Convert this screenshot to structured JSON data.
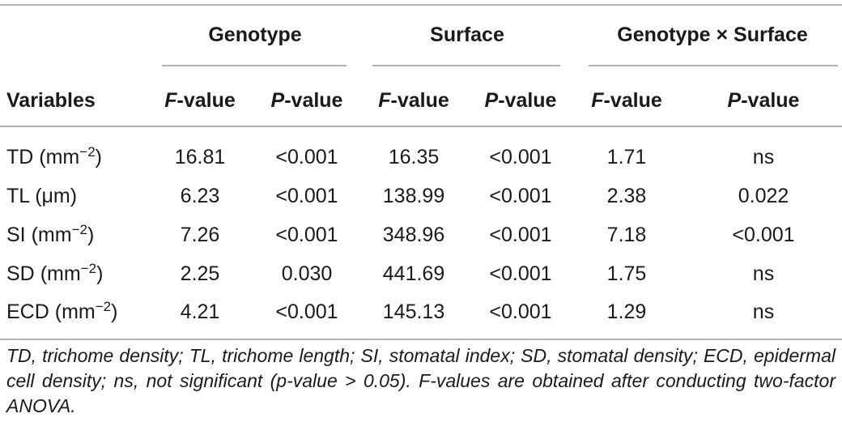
{
  "table": {
    "group_headers": [
      "Genotype",
      "Surface",
      "Genotype × Surface"
    ],
    "row_header": "Variables",
    "columns": [
      {
        "letter": "F",
        "suffix": "-value"
      },
      {
        "letter": "P",
        "suffix": "-value"
      },
      {
        "letter": "F",
        "suffix": "-value"
      },
      {
        "letter": "P",
        "suffix": "-value"
      },
      {
        "letter": "F",
        "suffix": "-value"
      },
      {
        "letter": "P",
        "suffix": "-value"
      }
    ],
    "rows": [
      {
        "name": "TD",
        "unit_base": "(mm",
        "unit_sup": "−2",
        "unit_end": ")",
        "values": [
          "16.81",
          "<0.001",
          "16.35",
          "<0.001",
          "1.71",
          "ns"
        ]
      },
      {
        "name": "TL",
        "unit_base": "(μm)",
        "unit_sup": "",
        "unit_end": "",
        "values": [
          "6.23",
          "<0.001",
          "138.99",
          "<0.001",
          "2.38",
          "0.022"
        ]
      },
      {
        "name": "SI",
        "unit_base": "(mm",
        "unit_sup": "−2",
        "unit_end": ")",
        "values": [
          "7.26",
          "<0.001",
          "348.96",
          "<0.001",
          "7.18",
          "<0.001"
        ]
      },
      {
        "name": "SD",
        "unit_base": "(mm",
        "unit_sup": "−2",
        "unit_end": ")",
        "values": [
          "2.25",
          "0.030",
          "441.69",
          "<0.001",
          "1.75",
          "ns"
        ]
      },
      {
        "name": "ECD",
        "unit_base": "(mm",
        "unit_sup": "−2",
        "unit_end": ")",
        "values": [
          "4.21",
          "<0.001",
          "145.13",
          "<0.001",
          "1.29",
          "ns"
        ]
      }
    ]
  },
  "footnote": "TD, trichome density; TL, trichome length; SI, stomatal index; SD, stomatal density; ECD, epidermal cell density; ns, not significant (p-value > 0.05). F-values are obtained after conducting two-factor ANOVA."
}
